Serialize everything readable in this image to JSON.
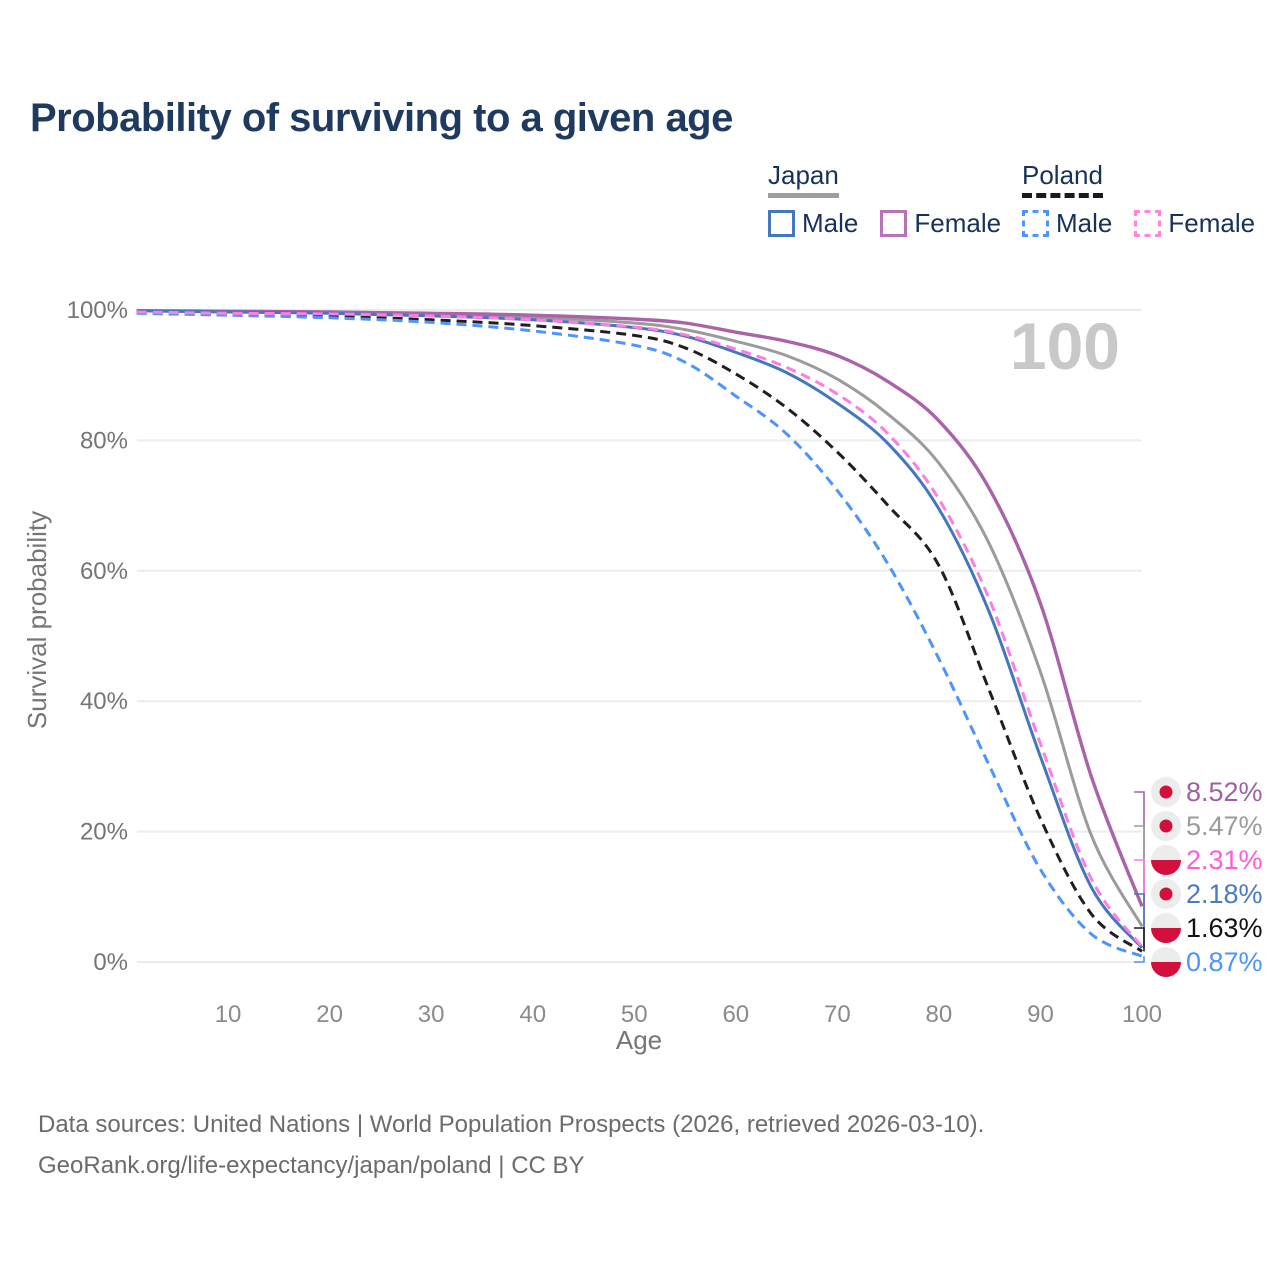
{
  "title": "Probability of surviving to a given age",
  "watermark_age": "100",
  "legend": {
    "groups": [
      {
        "country": "Japan",
        "line_style": "solid",
        "underline_color": "#9e9e9e",
        "items": [
          {
            "label": "Male",
            "color": "#4477bb",
            "dash": false
          },
          {
            "label": "Female",
            "color": "#b873b8",
            "dash": false
          }
        ]
      },
      {
        "country": "Poland",
        "line_style": "dashed",
        "underline_color": "#1a1a1a",
        "items": [
          {
            "label": "Male",
            "color": "#4d94ff",
            "dash": true
          },
          {
            "label": "Female",
            "color": "#ff85e0",
            "dash": true
          }
        ]
      }
    ]
  },
  "chart_data": {
    "type": "line",
    "title": "Probability of surviving to a given age",
    "xlabel": "Age",
    "ylabel": "Survival probability",
    "xlim": [
      0,
      100
    ],
    "ylim": [
      0,
      100
    ],
    "grid": true,
    "x_ticks": [
      10,
      20,
      30,
      40,
      50,
      60,
      70,
      80,
      90,
      100
    ],
    "y_ticks": [
      0,
      20,
      40,
      60,
      80,
      100
    ],
    "y_tick_suffix": "%",
    "ages": [
      1,
      10,
      20,
      30,
      40,
      50,
      55,
      60,
      65,
      70,
      75,
      80,
      85,
      90,
      95,
      100
    ],
    "series": [
      {
        "name": "Japan Female",
        "country": "Japan",
        "sex": "Female",
        "flag": "japan",
        "color": "#aa62a8",
        "label_color": "#a05fa5",
        "dash": false,
        "z": 2,
        "end_label": "8.52%",
        "end_value": 8.52,
        "values": [
          99.9,
          99.8,
          99.7,
          99.5,
          99.2,
          98.6,
          98.0,
          96.6,
          95.2,
          93.0,
          89.0,
          83.0,
          72.5,
          55.0,
          28.5,
          8.52
        ]
      },
      {
        "name": "Japan",
        "country": "Japan",
        "sex": "Both",
        "flag": "japan",
        "color": "#9b9b9b",
        "label_color": "#9b9b9b",
        "dash": false,
        "z": 1,
        "end_label": "5.47%",
        "end_value": 5.47,
        "values": [
          99.9,
          99.7,
          99.6,
          99.3,
          98.9,
          98.0,
          97.0,
          95.2,
          93.0,
          89.4,
          84.0,
          76.5,
          64.0,
          44.5,
          19.5,
          5.47
        ]
      },
      {
        "name": "Poland Female",
        "country": "Poland",
        "sex": "Female",
        "flag": "poland",
        "color": "#ff7ce0",
        "label_color": "#ff5cd6",
        "dash": true,
        "z": 6,
        "end_label": "2.31%",
        "end_value": 2.31,
        "values": [
          99.7,
          99.5,
          99.4,
          99.1,
          98.5,
          97.4,
          96.2,
          94.0,
          91.2,
          87.1,
          81.0,
          71.0,
          55.5,
          33.5,
          12.8,
          2.31
        ]
      },
      {
        "name": "Japan Male",
        "country": "Japan",
        "sex": "Male",
        "flag": "japan",
        "color": "#4477bb",
        "label_color": "#4a7ac2",
        "dash": false,
        "z": 3,
        "end_label": "2.18%",
        "end_value": 2.18,
        "values": [
          99.9,
          99.7,
          99.5,
          99.1,
          98.5,
          97.3,
          96.0,
          93.5,
          90.4,
          85.7,
          79.5,
          69.5,
          53.5,
          31.5,
          11.5,
          2.18
        ]
      },
      {
        "name": "Poland",
        "country": "Poland",
        "sex": "Both",
        "flag": "poland",
        "color": "#1f1f1f",
        "label_color": "#111111",
        "dash": true,
        "z": 4,
        "end_label": "1.63%",
        "end_value": 1.63,
        "values": [
          99.6,
          99.3,
          99.0,
          98.5,
          97.6,
          96.1,
          94.2,
          90.2,
          85.0,
          78.2,
          70.0,
          60.8,
          41.5,
          22.0,
          7.4,
          1.63
        ]
      },
      {
        "name": "Poland Male",
        "country": "Poland",
        "sex": "Male",
        "flag": "poland",
        "color": "#4d94ff",
        "label_color": "#4d94ff",
        "dash": true,
        "z": 5,
        "end_label": "0.87%",
        "end_value": 0.87,
        "values": [
          99.5,
          99.2,
          98.8,
          98.1,
          96.8,
          94.6,
          92.0,
          86.8,
          81.0,
          72.3,
          61.0,
          46.5,
          30.0,
          14.2,
          4.3,
          0.87
        ]
      }
    ],
    "flag_colors": {
      "badge_bg": "#ececec",
      "red": "#d3103c"
    }
  },
  "footer": {
    "line1": "Data sources: United Nations | World Population Prospects (2026, retrieved 2026-03-10).",
    "line2": "GeoRank.org/life-expectancy/japan/poland | CC BY"
  }
}
